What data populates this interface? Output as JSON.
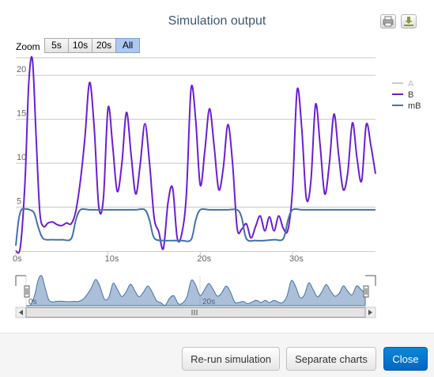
{
  "dialog": {
    "rerun_label": "Re-run simulation",
    "separate_label": "Separate charts",
    "close_label": "Close"
  },
  "icons": {
    "print": "print-icon",
    "download": "download-icon"
  },
  "chart_data": {
    "type": "line",
    "title": "Simulation output",
    "zoom": {
      "label": "Zoom",
      "buttons": [
        "5s",
        "10s",
        "20s",
        "All"
      ],
      "active": "All"
    },
    "xlim": [
      0,
      39
    ],
    "ylim": [
      0,
      22
    ],
    "x_ticks": [
      "0s",
      "10s",
      "20s",
      "30s"
    ],
    "x_tick_values": [
      0,
      10,
      20,
      30
    ],
    "y_ticks": [
      "5",
      "10",
      "15",
      "20"
    ],
    "y_tick_values": [
      5,
      10,
      15,
      20
    ],
    "grid": true,
    "legend": "top-right",
    "navigator": {
      "x_ticks": [
        "0s",
        "20s"
      ],
      "x_tick_values": [
        0,
        20
      ]
    },
    "series": [
      {
        "name": "A",
        "color": "#c0c0c0",
        "visible": false,
        "x": [],
        "y": []
      },
      {
        "name": "B",
        "color": "#6a1fd0",
        "visible": true,
        "x": [
          0,
          0.5,
          1,
          1.4,
          1.8,
          2.2,
          2.6,
          3,
          3.5,
          4,
          4.5,
          5,
          5.5,
          6,
          6.5,
          7,
          7.5,
          8,
          8.5,
          9,
          9.5,
          10,
          10.5,
          11,
          11.5,
          12,
          12.5,
          13,
          13.5,
          14,
          14.5,
          15,
          15.5,
          16,
          16.5,
          17,
          17.5,
          18,
          18.5,
          19,
          19.5,
          20,
          20.5,
          21,
          21.5,
          22,
          22.5,
          23,
          23.5,
          24,
          24.5,
          25,
          25.5,
          26,
          26.5,
          27,
          27.5,
          28,
          28.5,
          29,
          29.5,
          30,
          30.5,
          31,
          31.5,
          32,
          32.5,
          33,
          33.5,
          34,
          34.5,
          35,
          35.5,
          36,
          36.5,
          37,
          37.5,
          38,
          38.5,
          39
        ],
        "y": [
          0,
          0.5,
          8,
          19,
          21.8,
          13,
          4.5,
          2.8,
          3.2,
          3.3,
          3.0,
          2.9,
          3.2,
          3.1,
          4.5,
          8,
          13,
          19.2,
          14,
          5,
          6,
          16.3,
          12,
          6.8,
          10,
          15.8,
          11,
          6.5,
          10,
          14.5,
          10,
          3.8,
          2.2,
          0.3,
          5.5,
          7.2,
          1.5,
          2,
          6.5,
          18.5,
          15,
          7.5,
          11.5,
          16.2,
          12,
          7,
          9.5,
          14.4,
          10,
          2.6,
          2.5,
          3.1,
          1.5,
          2.8,
          4,
          2.3,
          3.9,
          2.3,
          4,
          2.6,
          2.4,
          7,
          18.3,
          14,
          6,
          8,
          16.7,
          12,
          6.5,
          10,
          15.6,
          11,
          7,
          9,
          14.6,
          10.5,
          8,
          14.4,
          12,
          8.8
        ]
      },
      {
        "name": "mB",
        "color": "#4472a8",
        "visible": true,
        "x": [
          0,
          0.3,
          0.6,
          1,
          1.5,
          2,
          2.5,
          3,
          4,
          5,
          6,
          6.5,
          7,
          8,
          9,
          10,
          11,
          12,
          13,
          14,
          14.5,
          15,
          16,
          17,
          18,
          19,
          19.5,
          20,
          21,
          22,
          23,
          24,
          24.5,
          25,
          26,
          27,
          28,
          29,
          29.5,
          30,
          31,
          32,
          33,
          34,
          35,
          36,
          37,
          38,
          39
        ],
        "y": [
          0.6,
          3.5,
          4.7,
          4.8,
          4.7,
          4.3,
          2.5,
          1.4,
          1.3,
          1.3,
          1.4,
          3.5,
          4.7,
          4.7,
          4.7,
          4.7,
          4.7,
          4.7,
          4.7,
          4.7,
          3.5,
          1.5,
          1.2,
          1.2,
          1.2,
          1.3,
          3.5,
          4.7,
          4.7,
          4.7,
          4.7,
          4.7,
          3.8,
          1.4,
          1.2,
          1.2,
          1.3,
          1.4,
          3.5,
          4.7,
          4.7,
          4.7,
          4.7,
          4.7,
          4.7,
          4.7,
          4.7,
          4.7,
          4.7
        ]
      }
    ]
  }
}
